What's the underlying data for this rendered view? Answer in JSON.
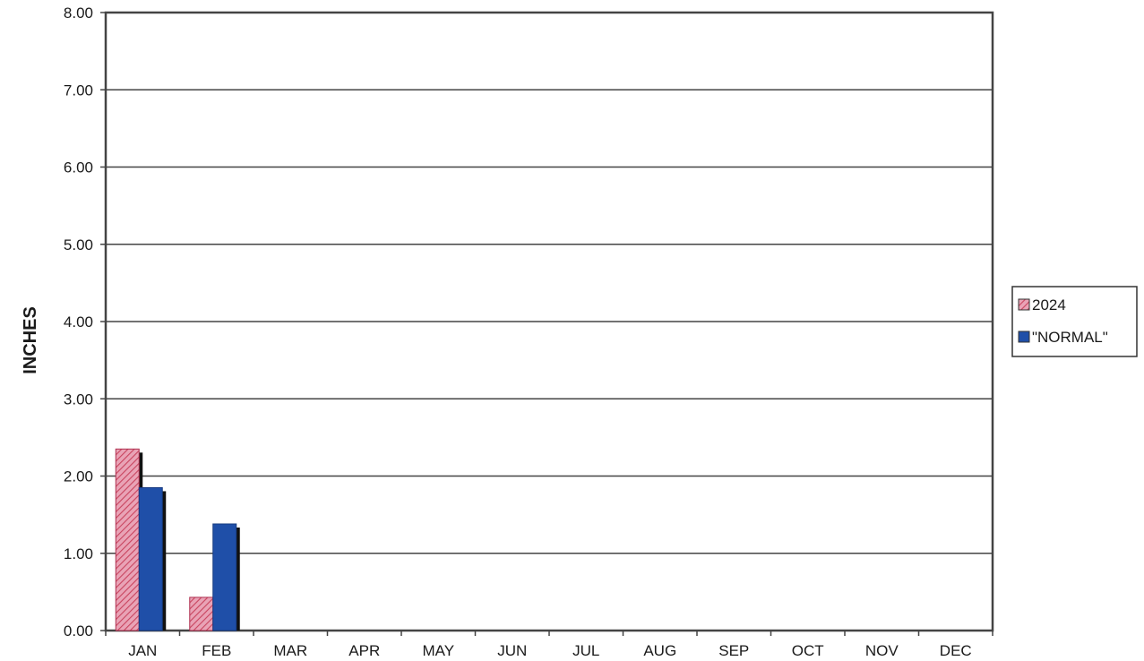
{
  "chart_data": {
    "type": "bar",
    "ylabel": "INCHES",
    "categories": [
      "JAN",
      "FEB",
      "MAR",
      "APR",
      "MAY",
      "JUN",
      "JUL",
      "AUG",
      "SEP",
      "OCT",
      "NOV",
      "DEC"
    ],
    "series": [
      {
        "name": "2024",
        "values": [
          2.35,
          0.43,
          null,
          null,
          null,
          null,
          null,
          null,
          null,
          null,
          null,
          null
        ]
      },
      {
        "name": "\"NORMAL\"",
        "values": [
          1.85,
          1.38,
          null,
          null,
          null,
          null,
          null,
          null,
          null,
          null,
          null,
          null
        ]
      }
    ],
    "ylim": [
      0,
      8
    ],
    "yticks": [
      "0.00",
      "1.00",
      "2.00",
      "3.00",
      "4.00",
      "5.00",
      "6.00",
      "7.00",
      "8.00"
    ],
    "grid": true,
    "legend_position": "right",
    "colors": {
      "2024": "#d8698a",
      "\"NORMAL\"": "#1f4fa8",
      "grid": "#444444",
      "frame": "#444444"
    }
  }
}
